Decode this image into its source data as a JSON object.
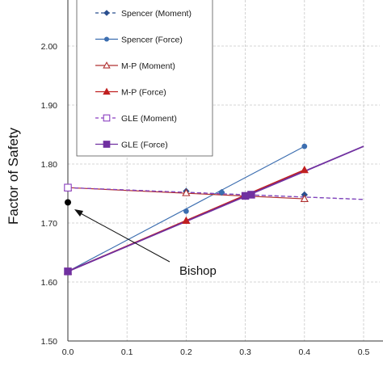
{
  "chart_data": {
    "type": "line",
    "ylabel": "Factor of Safety",
    "xlim": [
      0.0,
      0.5
    ],
    "ylim": [
      1.5,
      2.05
    ],
    "x_ticks": [
      "0.0",
      "0.1",
      "0.2",
      "0.3",
      "0.4",
      "0.5"
    ],
    "y_ticks": [
      "1.50",
      "1.60",
      "1.70",
      "1.80",
      "1.90",
      "2.00"
    ],
    "grid": true,
    "legend_position": "top-left",
    "series": [
      {
        "name": "Spencer (Moment)",
        "color": "#2a4f8f",
        "dash": "dashed",
        "marker": "diamond",
        "x": [
          0.0,
          0.2,
          0.26,
          0.4
        ],
        "y": [
          1.76,
          1.754,
          1.752,
          1.748
        ],
        "line_x": [
          0.0,
          0.5
        ],
        "line_y": [
          1.76,
          1.74
        ]
      },
      {
        "name": "Spencer (Force)",
        "color": "#3c6eb0",
        "dash": "solid",
        "marker": "circle",
        "x": [
          0.0,
          0.2,
          0.26,
          0.4
        ],
        "y": [
          1.618,
          1.72,
          1.752,
          1.83
        ],
        "line_x": [
          0.0,
          0.4
        ],
        "line_y": [
          1.618,
          1.83
        ]
      },
      {
        "name": "M-P (Moment)",
        "color": "#b03030",
        "dash": "solid",
        "marker": "triangle-open",
        "x": [
          0.0,
          0.2,
          0.4
        ],
        "y": [
          1.76,
          1.751,
          1.741
        ],
        "line_x": [
          0.0,
          0.4
        ],
        "line_y": [
          1.76,
          1.741
        ]
      },
      {
        "name": "M-P (Force)",
        "color": "#c02020",
        "dash": "solid",
        "marker": "triangle",
        "x": [
          0.0,
          0.2,
          0.4
        ],
        "y": [
          1.618,
          1.704,
          1.79
        ],
        "line_x": [
          0.0,
          0.4
        ],
        "line_y": [
          1.618,
          1.79
        ]
      },
      {
        "name": "GLE (Moment)",
        "color": "#8a3fc0",
        "dash": "dashed",
        "marker": "square-open",
        "x": [
          0.0
        ],
        "y": [
          1.76
        ],
        "line_x": [
          0.0,
          0.5
        ],
        "line_y": [
          1.76,
          1.74
        ]
      },
      {
        "name": "GLE (Force)",
        "color": "#7030a0",
        "dash": "solid",
        "marker": "square",
        "x": [
          0.0,
          0.3,
          0.31
        ],
        "y": [
          1.618,
          1.746,
          1.748
        ],
        "line_x": [
          0.0,
          0.5
        ],
        "line_y": [
          1.618,
          1.83
        ]
      }
    ],
    "annotations": [
      {
        "text": "Bishop",
        "point_x": 0.0,
        "point_y": 1.735
      }
    ]
  }
}
